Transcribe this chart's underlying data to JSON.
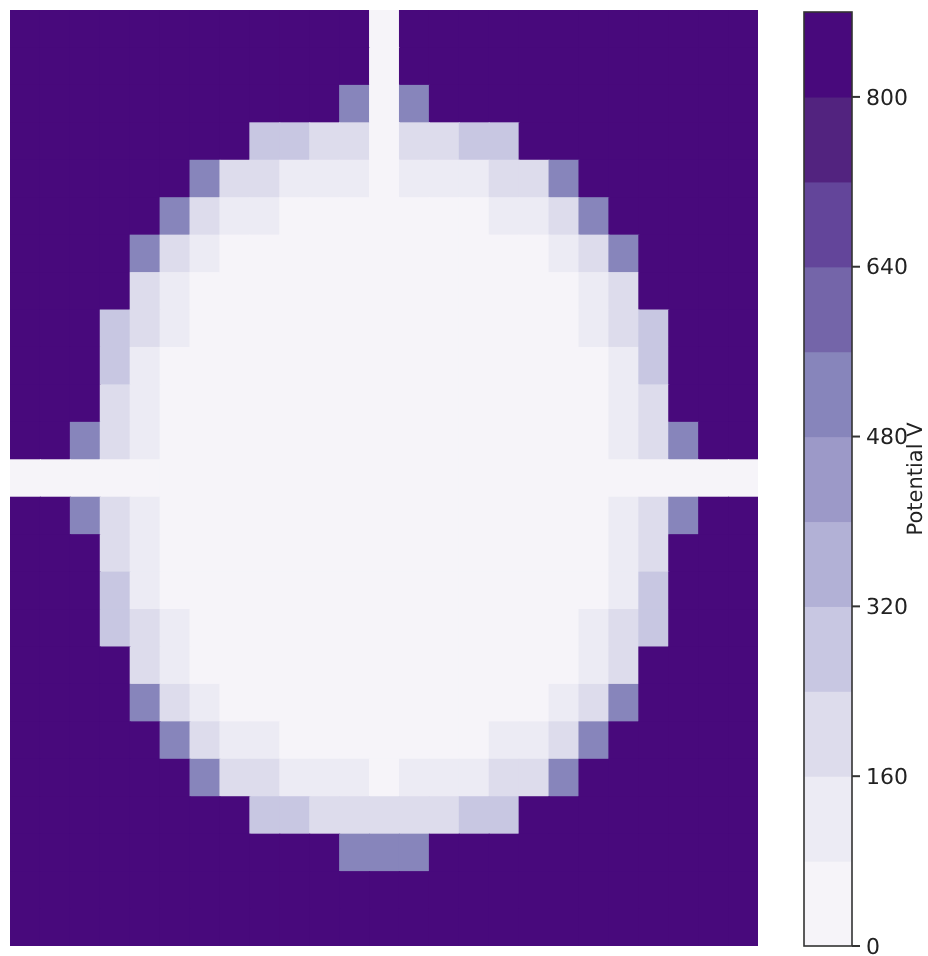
{
  "chart_data": {
    "type": "heatmap",
    "clabel": "Potential V",
    "clim": [
      0,
      880
    ],
    "cticks": [
      0,
      160,
      320,
      480,
      640,
      800
    ],
    "tick_labels": false,
    "categories": [
      null,
      null,
      null,
      null,
      null,
      null,
      null,
      null,
      null,
      null,
      null,
      null,
      null,
      null,
      null,
      null,
      null,
      null,
      null,
      null,
      null,
      null,
      null,
      null,
      null
    ],
    "y_categories": [
      null,
      null,
      null,
      null,
      null,
      null,
      null,
      null,
      null,
      null,
      null,
      null,
      null,
      null,
      null,
      null,
      null,
      null,
      null,
      null,
      null,
      null,
      null,
      null,
      null
    ],
    "cells": [
      [
        850,
        850,
        850,
        850,
        850,
        850,
        850,
        850,
        850,
        850,
        850,
        850,
        30,
        850,
        850,
        850,
        850,
        850,
        850,
        850,
        850,
        850,
        850,
        850,
        850
      ],
      [
        850,
        850,
        850,
        850,
        850,
        850,
        850,
        850,
        850,
        850,
        850,
        850,
        30,
        850,
        850,
        850,
        850,
        850,
        850,
        850,
        850,
        850,
        850,
        850,
        850
      ],
      [
        850,
        850,
        850,
        850,
        850,
        850,
        850,
        850,
        850,
        850,
        850,
        550,
        30,
        550,
        850,
        850,
        850,
        850,
        850,
        850,
        850,
        850,
        850,
        850,
        850
      ],
      [
        850,
        850,
        850,
        850,
        850,
        850,
        850,
        850,
        300,
        300,
        170,
        170,
        30,
        170,
        170,
        300,
        300,
        850,
        850,
        850,
        850,
        850,
        850,
        850,
        850
      ],
      [
        850,
        850,
        850,
        850,
        850,
        850,
        550,
        170,
        170,
        100,
        100,
        100,
        30,
        100,
        100,
        100,
        170,
        170,
        550,
        850,
        850,
        850,
        850,
        850,
        850
      ],
      [
        850,
        850,
        850,
        850,
        850,
        550,
        170,
        100,
        100,
        30,
        30,
        30,
        30,
        30,
        30,
        30,
        100,
        100,
        170,
        550,
        850,
        850,
        850,
        850,
        850
      ],
      [
        850,
        850,
        850,
        850,
        550,
        170,
        100,
        30,
        30,
        30,
        30,
        30,
        30,
        30,
        30,
        30,
        30,
        30,
        100,
        170,
        550,
        850,
        850,
        850,
        850
      ],
      [
        850,
        850,
        850,
        850,
        170,
        100,
        30,
        30,
        30,
        30,
        30,
        30,
        30,
        30,
        30,
        30,
        30,
        30,
        30,
        100,
        170,
        850,
        850,
        850,
        850
      ],
      [
        850,
        850,
        850,
        300,
        170,
        100,
        30,
        30,
        30,
        30,
        30,
        30,
        30,
        30,
        30,
        30,
        30,
        30,
        30,
        100,
        170,
        300,
        850,
        850,
        850
      ],
      [
        850,
        850,
        850,
        300,
        100,
        30,
        30,
        30,
        30,
        30,
        30,
        30,
        30,
        30,
        30,
        30,
        30,
        30,
        30,
        30,
        100,
        300,
        850,
        850,
        850
      ],
      [
        850,
        850,
        850,
        170,
        100,
        30,
        30,
        30,
        30,
        30,
        30,
        30,
        30,
        30,
        30,
        30,
        30,
        30,
        30,
        30,
        100,
        170,
        850,
        850,
        850
      ],
      [
        850,
        850,
        550,
        170,
        100,
        30,
        30,
        30,
        30,
        30,
        30,
        30,
        30,
        30,
        30,
        30,
        30,
        30,
        30,
        30,
        100,
        170,
        550,
        850,
        850
      ],
      [
        30,
        30,
        30,
        30,
        30,
        30,
        30,
        30,
        30,
        30,
        30,
        30,
        30,
        30,
        30,
        30,
        30,
        30,
        30,
        30,
        30,
        30,
        30,
        30,
        30
      ],
      [
        850,
        850,
        550,
        170,
        100,
        30,
        30,
        30,
        30,
        30,
        30,
        30,
        30,
        30,
        30,
        30,
        30,
        30,
        30,
        30,
        100,
        170,
        550,
        850,
        850
      ],
      [
        850,
        850,
        850,
        170,
        100,
        30,
        30,
        30,
        30,
        30,
        30,
        30,
        30,
        30,
        30,
        30,
        30,
        30,
        30,
        30,
        100,
        170,
        850,
        850,
        850
      ],
      [
        850,
        850,
        850,
        300,
        100,
        30,
        30,
        30,
        30,
        30,
        30,
        30,
        30,
        30,
        30,
        30,
        30,
        30,
        30,
        30,
        100,
        300,
        850,
        850,
        850
      ],
      [
        850,
        850,
        850,
        300,
        170,
        100,
        30,
        30,
        30,
        30,
        30,
        30,
        30,
        30,
        30,
        30,
        30,
        30,
        30,
        100,
        170,
        300,
        850,
        850,
        850
      ],
      [
        850,
        850,
        850,
        850,
        170,
        100,
        30,
        30,
        30,
        30,
        30,
        30,
        30,
        30,
        30,
        30,
        30,
        30,
        30,
        100,
        170,
        850,
        850,
        850,
        850
      ],
      [
        850,
        850,
        850,
        850,
        550,
        170,
        100,
        30,
        30,
        30,
        30,
        30,
        30,
        30,
        30,
        30,
        30,
        30,
        100,
        170,
        550,
        850,
        850,
        850,
        850
      ],
      [
        850,
        850,
        850,
        850,
        850,
        550,
        170,
        100,
        100,
        30,
        30,
        30,
        30,
        30,
        30,
        30,
        100,
        100,
        170,
        550,
        850,
        850,
        850,
        850,
        850
      ],
      [
        850,
        850,
        850,
        850,
        850,
        850,
        550,
        170,
        170,
        100,
        100,
        100,
        30,
        100,
        100,
        100,
        170,
        170,
        550,
        850,
        850,
        850,
        850,
        850,
        850
      ],
      [
        850,
        850,
        850,
        850,
        850,
        850,
        850,
        850,
        300,
        300,
        170,
        170,
        170,
        170,
        170,
        300,
        300,
        850,
        850,
        850,
        850,
        850,
        850,
        850,
        850
      ],
      [
        850,
        850,
        850,
        850,
        850,
        850,
        850,
        850,
        850,
        850,
        850,
        550,
        550,
        550,
        850,
        850,
        850,
        850,
        850,
        850,
        850,
        850,
        850,
        850,
        850
      ],
      [
        850,
        850,
        850,
        850,
        850,
        850,
        850,
        850,
        850,
        850,
        850,
        850,
        850,
        850,
        850,
        850,
        850,
        850,
        850,
        850,
        850,
        850,
        850,
        850,
        850
      ],
      [
        850,
        850,
        850,
        850,
        850,
        850,
        850,
        850,
        850,
        850,
        850,
        850,
        850,
        850,
        850,
        850,
        850,
        850,
        850,
        850,
        850,
        850,
        850,
        850,
        850
      ]
    ]
  }
}
